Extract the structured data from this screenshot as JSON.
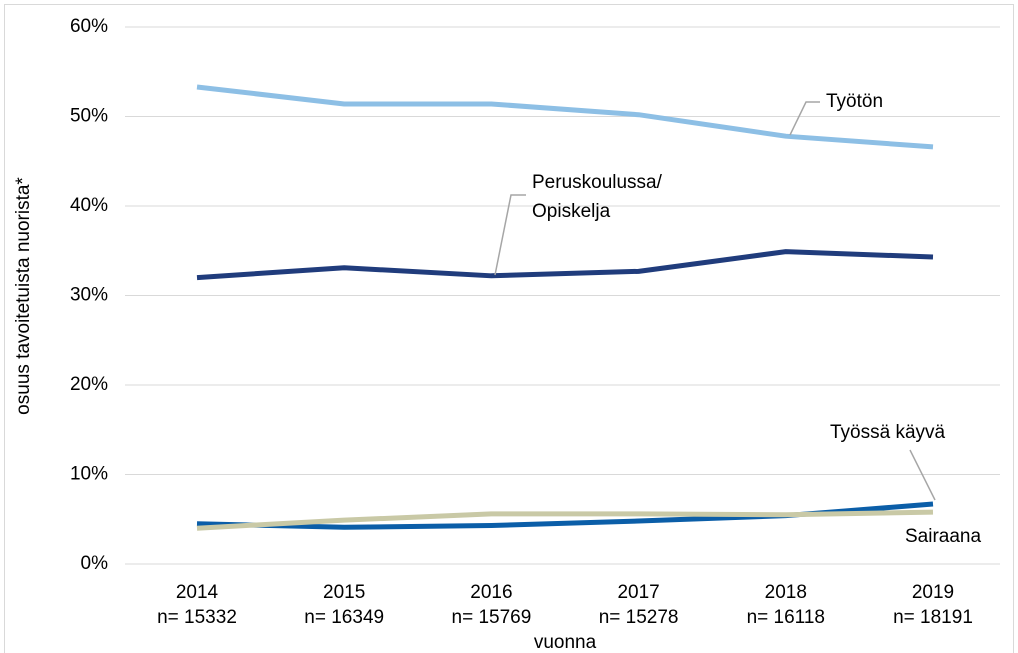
{
  "chart_data": {
    "type": "line",
    "y_label": "osuus tavoitetuista nuorista*",
    "x_label": "vuonna",
    "categories": [
      "2014",
      "2015",
      "2016",
      "2017",
      "2018",
      "2019"
    ],
    "category_counts": [
      "n= 15332",
      "n= 16349",
      "n= 15769",
      "n= 15278",
      "n= 16118",
      "n= 18191"
    ],
    "series": [
      {
        "name": "Työtön",
        "color": "#8dbfe5",
        "values": [
          53.3,
          51.4,
          51.4,
          50.2,
          47.8,
          46.6
        ]
      },
      {
        "name": "Peruskoulussa/\nOpiskelja",
        "color": "#203c7c",
        "values": [
          32.0,
          33.1,
          32.2,
          32.7,
          34.9,
          34.3
        ]
      },
      {
        "name": "Työssä käyvä",
        "color": "#0b5ea8",
        "values": [
          4.5,
          4.1,
          4.3,
          4.8,
          5.4,
          6.7
        ]
      },
      {
        "name": "Sairaana",
        "color": "#c9c9a6",
        "values": [
          4.0,
          4.9,
          5.6,
          5.6,
          5.5,
          5.8
        ]
      }
    ],
    "ylim": [
      0,
      60
    ],
    "yticks": [
      {
        "value": 0,
        "label": "0%"
      },
      {
        "value": 10,
        "label": "10%"
      },
      {
        "value": 20,
        "label": "20%"
      },
      {
        "value": 30,
        "label": "30%"
      },
      {
        "value": 40,
        "label": "40%"
      },
      {
        "value": 50,
        "label": "50%"
      },
      {
        "value": 60,
        "label": "60%"
      }
    ],
    "grid": true
  }
}
